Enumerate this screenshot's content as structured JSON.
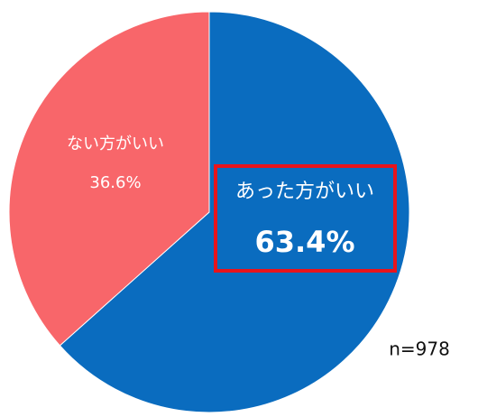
{
  "chart_data": {
    "type": "pie",
    "categories": [
      "あった方がいい",
      "ない方がいい"
    ],
    "values": [
      63.4,
      36.6
    ],
    "value_labels": [
      "63.4%",
      "36.6%"
    ],
    "colors": [
      "#0a6cbf",
      "#f8666a"
    ],
    "annotation": "n=978"
  }
}
